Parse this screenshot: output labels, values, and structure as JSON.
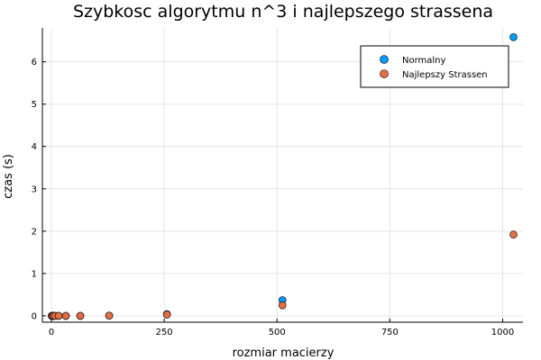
{
  "chart_data": {
    "type": "scatter",
    "title": "Szybkosc algorytmu n^3 i najlepszego strassena",
    "xlabel": "rozmiar macierzy",
    "ylabel": "czas (s)",
    "xlim": [
      -20,
      1045
    ],
    "ylim": [
      -0.15,
      6.8
    ],
    "xticks": [
      0,
      250,
      500,
      750,
      1000
    ],
    "yticks": [
      0,
      1,
      2,
      3,
      4,
      5,
      6
    ],
    "grid": true,
    "legend_position": "top-right",
    "series": [
      {
        "name": "Normalny",
        "color": "#009af9",
        "x": [
          1,
          2,
          4,
          8,
          16,
          32,
          64,
          128,
          256,
          512,
          1024
        ],
        "y": [
          0.0,
          0.0,
          0.0,
          0.0,
          0.0,
          0.0,
          0.0,
          0.005,
          0.04,
          0.37,
          6.58
        ]
      },
      {
        "name": "Najlepszy Strassen",
        "color": "#e26f46",
        "x": [
          1,
          2,
          4,
          8,
          16,
          32,
          64,
          128,
          256,
          512,
          1024
        ],
        "y": [
          0.0,
          0.0,
          0.0,
          0.0,
          0.0,
          0.0,
          0.0,
          0.005,
          0.03,
          0.25,
          1.92
        ]
      }
    ]
  }
}
